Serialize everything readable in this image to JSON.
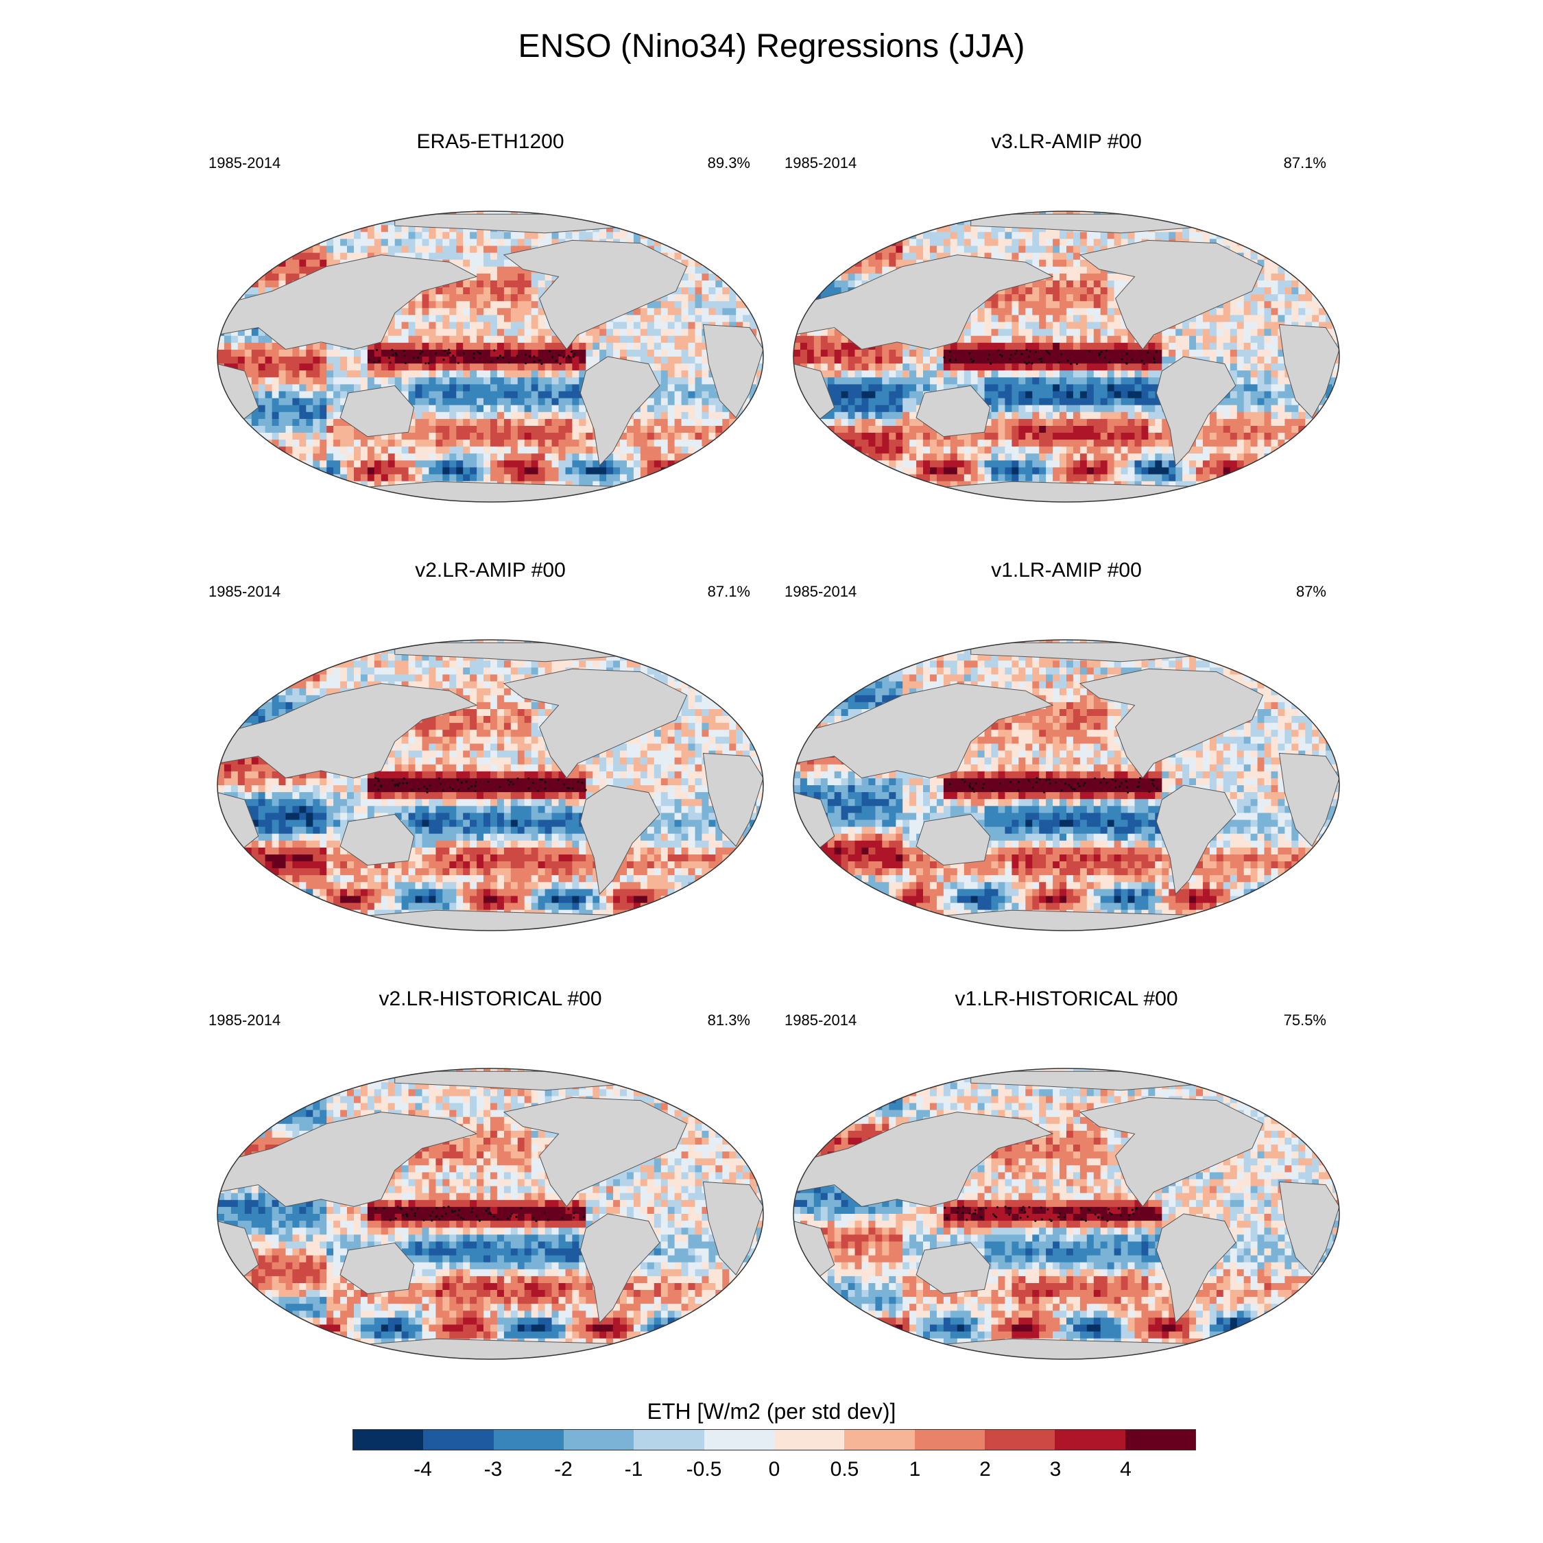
{
  "title": "ENSO (Nino34) Regressions (JJA)",
  "panels": [
    {
      "title": "ERA5-ETH1200",
      "years": "1985-2014",
      "pct": "89.3%",
      "stripe": [
        3.5,
        5,
        4.5,
        2.6
      ],
      "pattern": 0
    },
    {
      "title": "v3.LR-AMIP  #00",
      "years": "1985-2014",
      "pct": "87.1%",
      "stripe": [
        4.5,
        5,
        5,
        3.5
      ],
      "pattern": 1
    },
    {
      "title": "v2.LR-AMIP  #00",
      "years": "1985-2014",
      "pct": "87.1%",
      "stripe": [
        4.0,
        5,
        5,
        3.0
      ],
      "pattern": 2
    },
    {
      "title": "v1.LR-AMIP  #00",
      "years": "1985-2014",
      "pct": "87%",
      "stripe": [
        4.0,
        5,
        5,
        3.2
      ],
      "pattern": 3
    },
    {
      "title": "v2.LR-HISTORICAL  #00",
      "years": "1985-2014",
      "pct": "81.3%",
      "stripe": [
        3.6,
        5,
        5,
        2.8
      ],
      "pattern": 4
    },
    {
      "title": "v1.LR-HISTORICAL  #00",
      "years": "1985-2014",
      "pct": "75.5%",
      "stripe": [
        3.0,
        5,
        5,
        2.4
      ],
      "pattern": 5
    }
  ],
  "colorbar": {
    "title": "ETH [W/m2 (per std dev)]",
    "levels": [
      "-4",
      "-3",
      "-2",
      "-1",
      "-0.5",
      "0",
      "0.5",
      "1",
      "2",
      "3",
      "4"
    ],
    "colors": [
      "#053061",
      "#1d5aa0",
      "#3885bc",
      "#7bb3d6",
      "#b5d4e9",
      "#e5eef4",
      "#fbe5d8",
      "#f6b597",
      "#e8836a",
      "#cd4a44",
      "#ae1528",
      "#67001f"
    ]
  },
  "map_style": {
    "land": "#d3d3d3",
    "coast": "#555555",
    "stipple": "#111111"
  }
}
